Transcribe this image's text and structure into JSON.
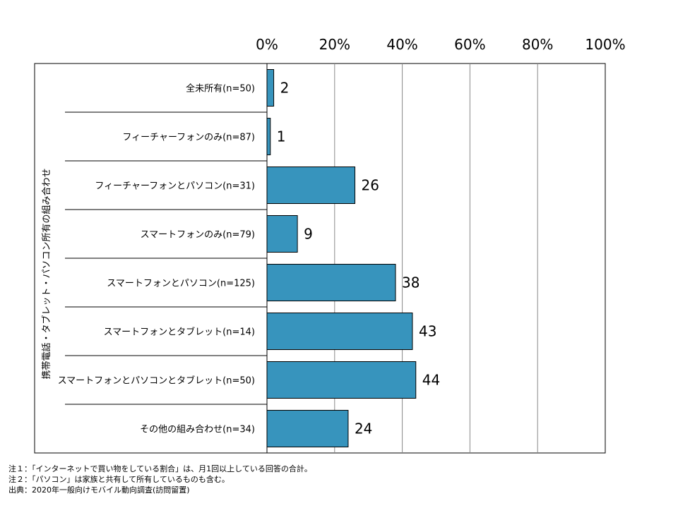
{
  "chart_data": {
    "type": "bar",
    "orientation": "horizontal",
    "categories": [
      "全未所有(n=50)",
      "フィーチャーフォンのみ(n=87)",
      "フィーチャーフォンとパソコン(n=31)",
      "スマートフォンのみ(n=79)",
      "スマートフォンとパソコン(n=125)",
      "スマートフォンとタブレット(n=14)",
      "スマートフォンとパソコンとタブレット(n=50)",
      "その他の組み合わせ(n=34)"
    ],
    "values": [
      2,
      1,
      26,
      9,
      38,
      43,
      44,
      24
    ],
    "xlim": [
      0,
      100
    ],
    "ticks": [
      "0%",
      "20%",
      "40%",
      "60%",
      "80%",
      "100%"
    ],
    "ylabel": "携帯電話・タブレット・パソコン所有の組み合わせ",
    "xlabel": "",
    "title": "",
    "grid": true,
    "bar_color": "#3794BD"
  },
  "notes": [
    "注１：「インターネットで買い物をしている割合」は、月1回以上している回答の合計。",
    "注２：「パソコン」は家族と共有して所有しているものも含む。",
    "出典：2020年一般向けモバイル動向調査(訪問留置)"
  ]
}
